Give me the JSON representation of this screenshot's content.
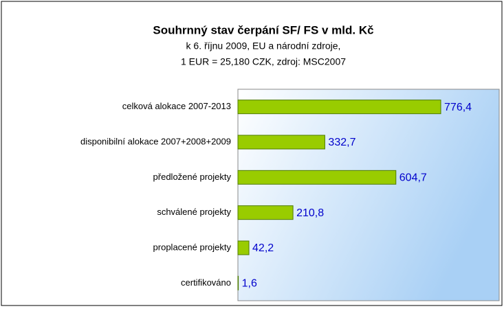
{
  "chart_data": {
    "type": "barh",
    "title": "Souhrnný stav čerpání SF/ FS v mld. Kč",
    "subtitle": [
      "k 6. říjnu 2009, EU a národní zdroje,",
      "1 EUR = 25,180 CZK, zdroj: MSC2007"
    ],
    "categories": [
      "celková alokace 2007-2013",
      "disponibilní alokace 2007+2008+2009",
      "předložené projekty",
      "schválené projekty",
      "proplacené projekty",
      "certifikováno"
    ],
    "values": [
      776.4,
      332.7,
      604.7,
      210.8,
      42.2,
      1.6
    ],
    "value_labels": [
      "776,4",
      "332,7",
      "604,7",
      "210,8",
      "42,2",
      "1,6"
    ],
    "color": "#99cc00",
    "xlim": [
      0,
      1000
    ]
  }
}
